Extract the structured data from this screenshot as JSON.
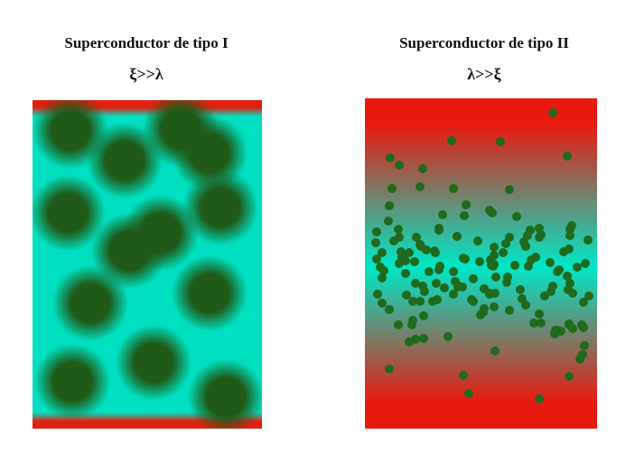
{
  "left": {
    "title": "Superconductor de tipo I",
    "relation": "ξ>>λ"
  },
  "right": {
    "title": "Superconductor de tipo II",
    "relation": "λ>>ξ"
  },
  "colors": {
    "superconducting": "#00e0c0",
    "normal": "#e02010",
    "vortex": "#1f5a18"
  }
}
